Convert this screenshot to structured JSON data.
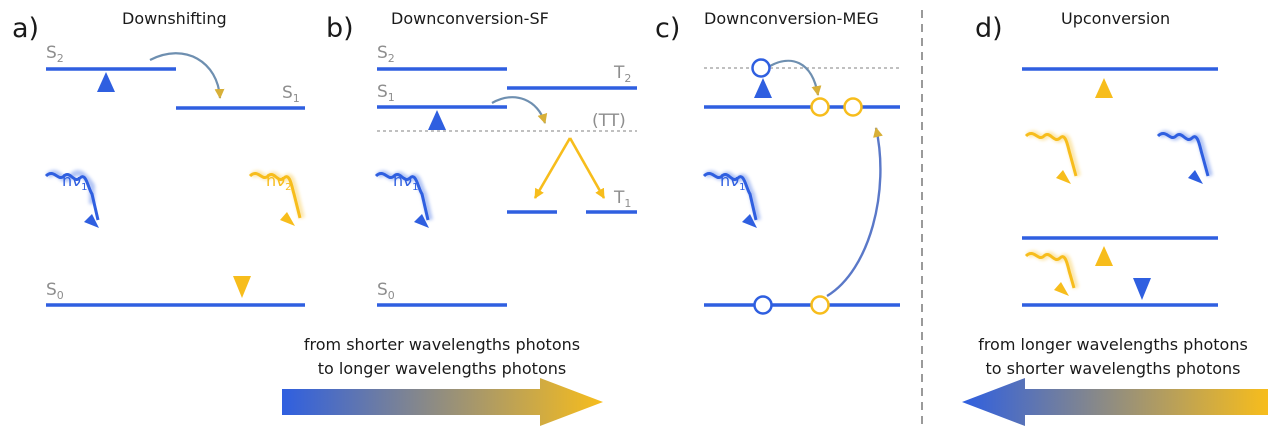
{
  "colors": {
    "blue": "#2f5fe0",
    "yellow": "#f7bd1c",
    "label_gray": "#8e8e8e",
    "divider_gray": "#9a9a9a"
  },
  "panels": {
    "a": {
      "letter": "a)",
      "title": "Downshifting",
      "levels": {
        "s2": "S",
        "s2_sub": "2",
        "s1": "S",
        "s1_sub": "1",
        "s0": "S",
        "s0_sub": "0"
      },
      "photons": {
        "in": "hν",
        "in_sub": "1",
        "out": "hν",
        "out_sub": "2"
      }
    },
    "b": {
      "letter": "b)",
      "title": "Downconversion-SF",
      "levels": {
        "s2": "S",
        "s2_sub": "2",
        "s1": "S",
        "s1_sub": "1",
        "s0": "S",
        "s0_sub": "0",
        "t2": "T",
        "t2_sub": "2",
        "tt": "(TT)",
        "t1": "T",
        "t1_sub": "1"
      },
      "photons": {
        "in": "hν",
        "in_sub": "1"
      }
    },
    "c": {
      "letter": "c)",
      "title": "Downconversion-MEG",
      "photons": {
        "in": "hν",
        "in_sub": "1"
      }
    },
    "d": {
      "letter": "d)",
      "title": "Upconversion"
    }
  },
  "captions": {
    "left": {
      "line1": "from shorter wavelengths photons",
      "line2": "to longer wavelengths photons"
    },
    "right": {
      "line1": "from longer wavelengths photons",
      "line2": "to shorter wavelengths photons"
    }
  }
}
